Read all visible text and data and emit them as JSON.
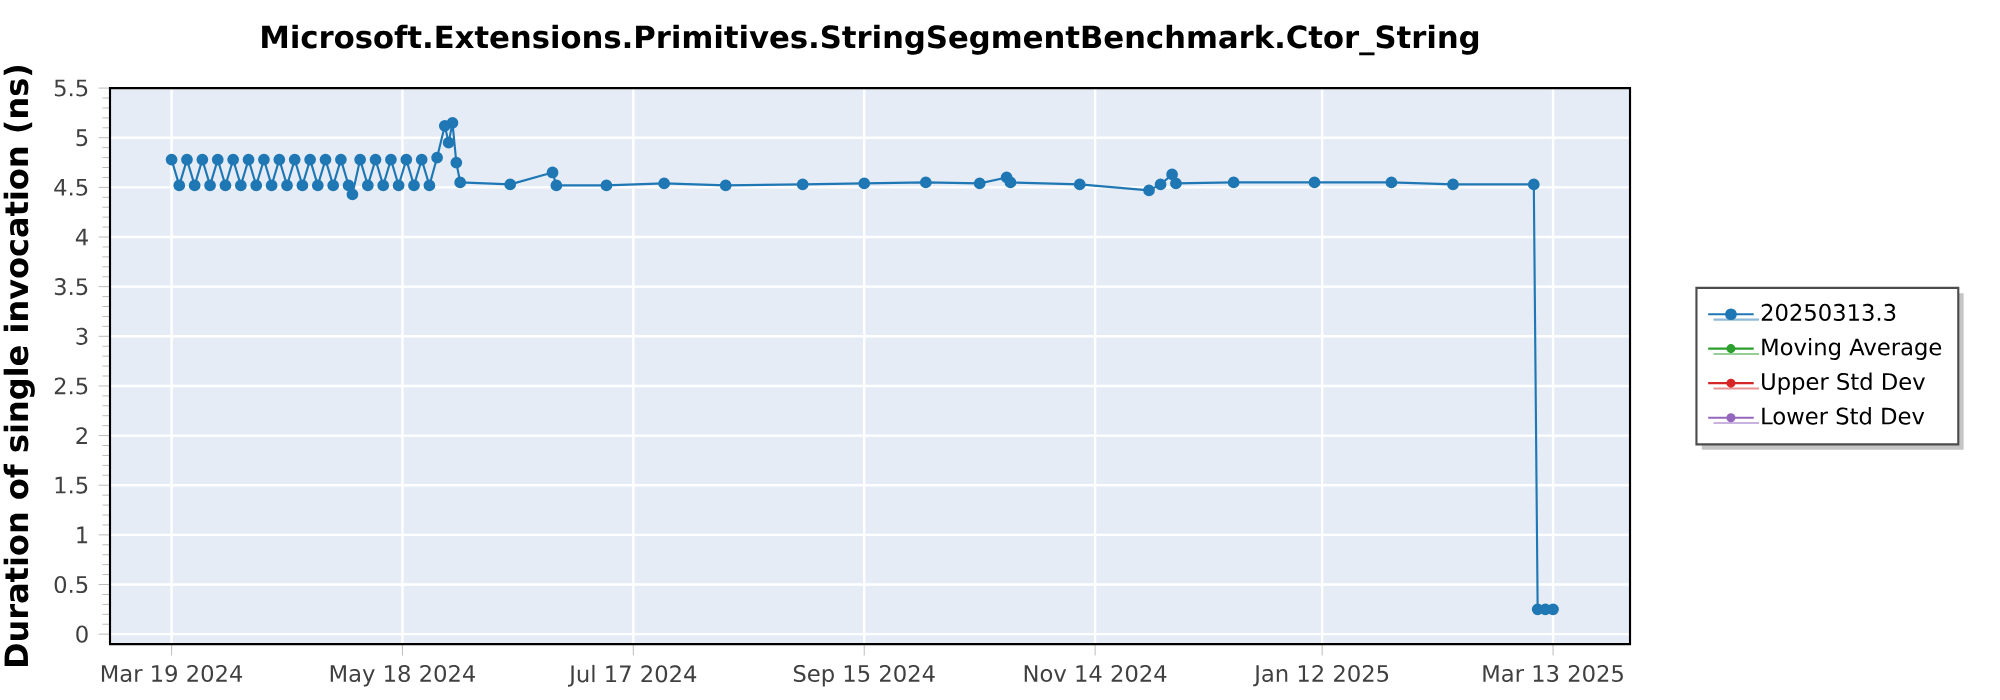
{
  "chart_data": {
    "type": "line",
    "title": "Microsoft.Extensions.Primitives.StringSegmentBenchmark.Ctor_String",
    "ylabel": "Duration of single invocation (ns)",
    "x": [
      "2024-03-19",
      "2024-03-21",
      "2024-03-23",
      "2024-03-25",
      "2024-03-27",
      "2024-03-29",
      "2024-03-31",
      "2024-04-02",
      "2024-04-04",
      "2024-04-06",
      "2024-04-08",
      "2024-04-10",
      "2024-04-12",
      "2024-04-14",
      "2024-04-16",
      "2024-04-18",
      "2024-04-20",
      "2024-04-22",
      "2024-04-24",
      "2024-04-26",
      "2024-04-28",
      "2024-04-30",
      "2024-05-02",
      "2024-05-04",
      "2024-05-05",
      "2024-05-07",
      "2024-05-09",
      "2024-05-11",
      "2024-05-13",
      "2024-05-15",
      "2024-05-17",
      "2024-05-19",
      "2024-05-21",
      "2024-05-23",
      "2024-05-25",
      "2024-05-27",
      "2024-05-29",
      "2024-05-30",
      "2024-05-31",
      "2024-06-01",
      "2024-06-02",
      "2024-06-15",
      "2024-06-26",
      "2024-06-27",
      "2024-07-10",
      "2024-07-25",
      "2024-08-10",
      "2024-08-30",
      "2024-09-15",
      "2024-10-01",
      "2024-10-15",
      "2024-10-22",
      "2024-10-23",
      "2024-11-10",
      "2024-11-28",
      "2024-12-01",
      "2024-12-04",
      "2024-12-05",
      "2024-12-20",
      "2025-01-10",
      "2025-01-30",
      "2025-02-15",
      "2025-03-08",
      "2025-03-09",
      "2025-03-11",
      "2025-03-13"
    ],
    "series": [
      {
        "name": "20250313.3",
        "color": "#1f77b4",
        "values": [
          4.78,
          4.52,
          4.78,
          4.52,
          4.78,
          4.52,
          4.78,
          4.52,
          4.78,
          4.52,
          4.78,
          4.52,
          4.78,
          4.52,
          4.78,
          4.52,
          4.78,
          4.52,
          4.78,
          4.52,
          4.78,
          4.52,
          4.78,
          4.52,
          4.43,
          4.78,
          4.52,
          4.78,
          4.52,
          4.78,
          4.52,
          4.78,
          4.52,
          4.78,
          4.52,
          4.8,
          5.12,
          4.95,
          5.15,
          4.75,
          4.55,
          4.53,
          4.65,
          4.52,
          4.52,
          4.54,
          4.52,
          4.53,
          4.54,
          4.55,
          4.54,
          4.6,
          4.55,
          4.53,
          4.47,
          4.53,
          4.63,
          4.54,
          4.55,
          4.55,
          4.55,
          4.53,
          4.53,
          0.25,
          0.25,
          0.25
        ]
      },
      {
        "name": "Moving Average",
        "color": "#2ca02c",
        "values": [
          null,
          null,
          null,
          null,
          null,
          null,
          null,
          null,
          null,
          null,
          null,
          null,
          null,
          null,
          null,
          null,
          null,
          null,
          null,
          null,
          null,
          null,
          null,
          null,
          null,
          null,
          null,
          null,
          null,
          null,
          null,
          null,
          null,
          null,
          null,
          null,
          null,
          null,
          null,
          null,
          null,
          null,
          null,
          null,
          null,
          null,
          null,
          null,
          null,
          null,
          null,
          null,
          null,
          null,
          null,
          null,
          null,
          null,
          null,
          null,
          null,
          null,
          null,
          null,
          null,
          null
        ]
      },
      {
        "name": "Upper Std Dev",
        "color": "#d62728",
        "values": [
          null,
          null,
          null,
          null,
          null,
          null,
          null,
          null,
          null,
          null,
          null,
          null,
          null,
          null,
          null,
          null,
          null,
          null,
          null,
          null,
          null,
          null,
          null,
          null,
          null,
          null,
          null,
          null,
          null,
          null,
          null,
          null,
          null,
          null,
          null,
          null,
          null,
          null,
          null,
          null,
          null,
          null,
          null,
          null,
          null,
          null,
          null,
          null,
          null,
          null,
          null,
          null,
          null,
          null,
          null,
          null,
          null,
          null,
          null,
          null,
          null,
          null,
          null,
          null,
          null,
          null
        ]
      },
      {
        "name": "Lower Std Dev",
        "color": "#9467bd",
        "values": [
          null,
          null,
          null,
          null,
          null,
          null,
          null,
          null,
          null,
          null,
          null,
          null,
          null,
          null,
          null,
          null,
          null,
          null,
          null,
          null,
          null,
          null,
          null,
          null,
          null,
          null,
          null,
          null,
          null,
          null,
          null,
          null,
          null,
          null,
          null,
          null,
          null,
          null,
          null,
          null,
          null,
          null,
          null,
          null,
          null,
          null,
          null,
          null,
          null,
          null,
          null,
          null,
          null,
          null,
          null,
          null,
          null,
          null,
          null,
          null,
          null,
          null,
          null,
          null,
          null,
          null
        ]
      }
    ],
    "xlim": [
      "2024-03-03",
      "2025-04-02"
    ],
    "xticks": [
      {
        "value": "2024-03-19",
        "label": "Mar 19 2024"
      },
      {
        "value": "2024-05-18",
        "label": "May 18 2024"
      },
      {
        "value": "2024-07-17",
        "label": "Jul 17 2024"
      },
      {
        "value": "2024-09-15",
        "label": "Sep 15 2024"
      },
      {
        "value": "2024-11-14",
        "label": "Nov 14 2024"
      },
      {
        "value": "2025-01-12",
        "label": "Jan 12 2025"
      },
      {
        "value": "2025-03-13",
        "label": "Mar 13 2025"
      }
    ],
    "ylim": [
      -0.1,
      5.5
    ],
    "yticks": [
      0,
      0.5,
      1,
      1.5,
      2,
      2.5,
      3,
      3.5,
      4,
      4.5,
      5,
      5.5
    ],
    "grid": true,
    "legend": "right",
    "marker": "circle",
    "line_style": "solid"
  }
}
